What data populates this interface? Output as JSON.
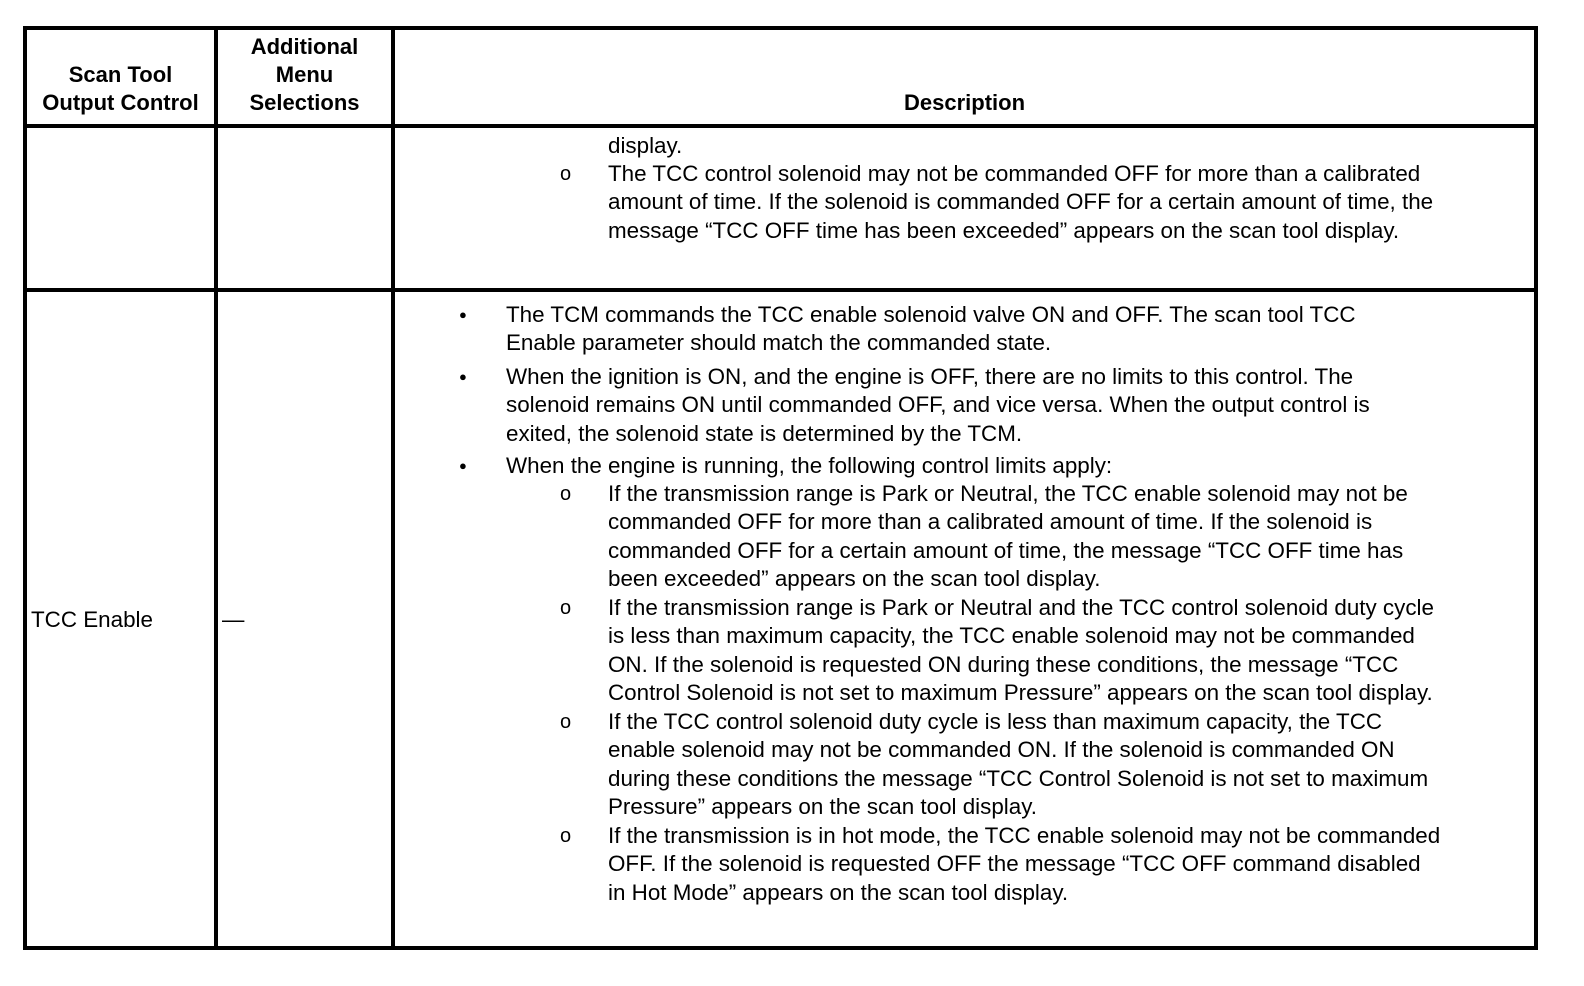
{
  "table": {
    "headers": {
      "col1": [
        "Scan Tool",
        "Output Control"
      ],
      "col2": [
        "Additional",
        "Menu",
        "Selections"
      ],
      "col3": "Description"
    },
    "rows": [
      {
        "output_control": "",
        "menu_selections": "",
        "description": [
          {
            "type": "continuation",
            "lines": [
              "display."
            ]
          },
          {
            "type": "sub",
            "lines": [
              "The TCC control solenoid may not be commanded OFF for more than a calibrated",
              "amount of time. If the solenoid is commanded OFF for a certain amount of time, the",
              "message “TCC OFF time has been exceeded” appears on the scan tool display."
            ]
          }
        ]
      },
      {
        "output_control": "TCC Enable",
        "menu_selections": "—",
        "description": [
          {
            "type": "bullet",
            "lines": [
              "The TCM commands the TCC enable solenoid valve ON and OFF. The scan tool TCC",
              "Enable parameter should match the commanded state."
            ]
          },
          {
            "type": "bullet",
            "lines": [
              "When the ignition is ON, and the engine is OFF, there are no limits to this control. The",
              "solenoid remains ON until commanded OFF, and vice versa. When the output control is",
              "exited, the solenoid state is determined by the TCM."
            ]
          },
          {
            "type": "bullet",
            "lines": [
              "When the engine is running, the following control limits apply:"
            ]
          },
          {
            "type": "sub",
            "lines": [
              "If the transmission range is Park or Neutral, the TCC enable solenoid may not be",
              "commanded OFF for more than a calibrated amount of time. If the solenoid is",
              "commanded OFF for a certain amount of time, the message “TCC OFF time has",
              "been exceeded” appears on the scan tool display."
            ]
          },
          {
            "type": "sub",
            "lines": [
              "If the transmission range is Park or Neutral and the TCC control solenoid duty cycle",
              "is less than maximum capacity, the TCC enable solenoid may not be commanded",
              "ON. If the solenoid is requested ON during these conditions, the message “TCC",
              "Control Solenoid is not set to maximum Pressure” appears on the scan tool display."
            ]
          },
          {
            "type": "sub",
            "lines": [
              "If the TCC control solenoid duty cycle is less than maximum capacity, the TCC",
              "enable solenoid may not be commanded ON. If the solenoid is commanded ON",
              "during these conditions the message “TCC Control Solenoid is not set to maximum",
              "Pressure” appears on the scan tool display."
            ]
          },
          {
            "type": "sub",
            "lines": [
              "If the transmission is in hot mode, the TCC enable solenoid may not be commanded",
              "OFF. If the solenoid is requested OFF the message “TCC OFF command disabled",
              "in Hot Mode” appears on the scan tool display."
            ]
          }
        ]
      }
    ]
  }
}
